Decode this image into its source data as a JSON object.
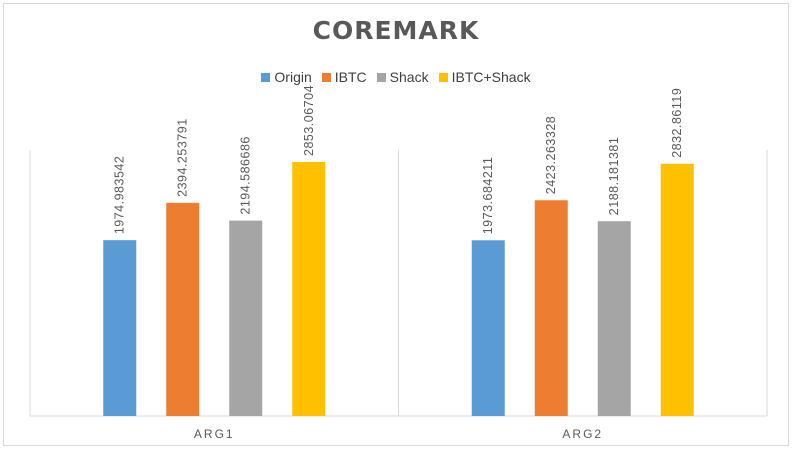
{
  "chart_data": {
    "type": "bar",
    "title": "COREMARK",
    "categories": [
      "ARG1",
      "ARG2"
    ],
    "series": [
      {
        "name": "Origin",
        "color": "#5b9bd5",
        "values": [
          1974.983542,
          1973.684211
        ],
        "labels": [
          "1974.983542",
          "1973.684211"
        ]
      },
      {
        "name": "IBTC",
        "color": "#ed7d31",
        "values": [
          2394.253791,
          2423.263328
        ],
        "labels": [
          "2394.253791",
          "2423.263328"
        ]
      },
      {
        "name": "Shack",
        "color": "#a5a5a5",
        "values": [
          2194.586686,
          2188.181381
        ],
        "labels": [
          "2194.586686",
          "2188.181381"
        ]
      },
      {
        "name": "IBTC+Shack",
        "color": "#ffc000",
        "values": [
          2853.06704,
          2832.86119
        ],
        "labels": [
          "2853.06704",
          "2832.86119"
        ]
      }
    ],
    "ylim": [
      0,
      3500
    ],
    "legend_position": "top",
    "grid": false,
    "xlabel": "",
    "ylabel": ""
  }
}
